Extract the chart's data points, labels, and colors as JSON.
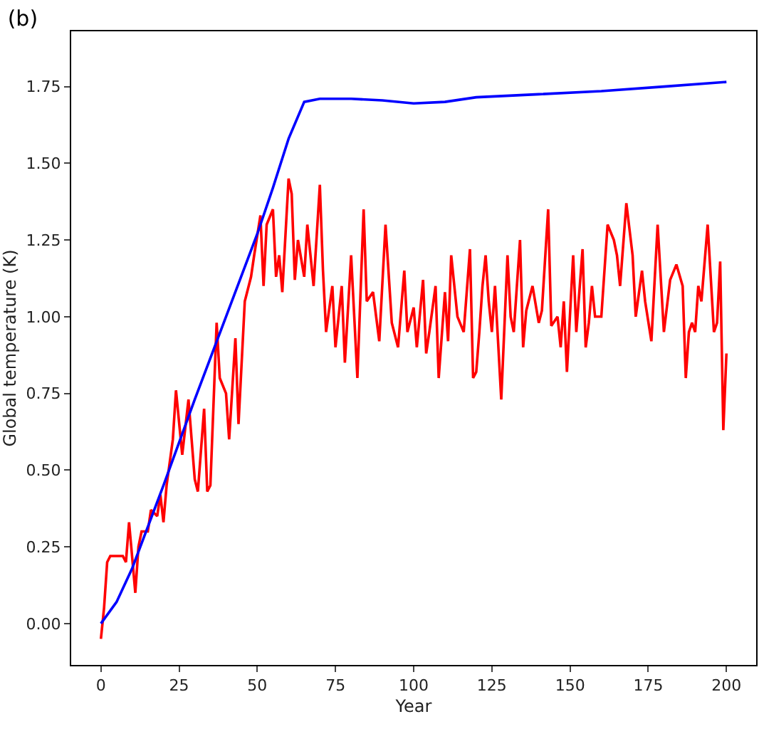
{
  "chart_data": {
    "type": "line",
    "title": "(b)",
    "xlabel": "Year",
    "ylabel": "Global temperature (K)",
    "xlim": [
      -9.5,
      209.5
    ],
    "xticks": [
      0,
      25,
      50,
      75,
      100,
      125,
      150,
      175,
      200
    ],
    "ylim": [
      -0.135,
      1.93
    ],
    "yticks": [
      {
        "value": 0,
        "label": "0.00"
      },
      {
        "value": 0.25,
        "label": "0.25"
      },
      {
        "value": 0.5,
        "label": "0.50"
      },
      {
        "value": 0.75,
        "label": "0.75"
      },
      {
        "value": 1.0,
        "label": "1.00"
      },
      {
        "value": 1.25,
        "label": "1.25"
      },
      {
        "value": 1.5,
        "label": "1.50"
      },
      {
        "value": 1.75,
        "label": "1.75"
      }
    ],
    "marker": "none",
    "line_style": "solid",
    "series": [
      {
        "color": "#ff0000",
        "x": [
          0,
          1,
          2,
          3,
          5,
          7,
          8,
          9,
          11,
          12,
          13,
          15,
          16,
          18,
          19,
          20,
          21,
          23,
          24,
          26,
          28,
          29,
          30,
          31,
          33,
          34,
          35,
          37,
          38,
          40,
          41,
          43,
          44,
          46,
          48,
          49,
          51,
          52,
          53,
          55,
          56,
          57,
          58,
          60,
          61,
          62,
          63,
          65,
          66,
          68,
          70,
          71,
          72,
          74,
          75,
          77,
          78,
          80,
          82,
          84,
          85,
          87,
          89,
          91,
          93,
          95,
          97,
          98,
          100,
          101,
          103,
          104,
          105,
          107,
          108,
          110,
          111,
          112,
          114,
          116,
          118,
          119,
          120,
          121,
          122,
          123,
          124,
          125,
          126,
          128,
          130,
          131,
          132,
          134,
          135,
          136,
          138,
          140,
          141,
          143,
          144,
          146,
          147,
          148,
          149,
          151,
          152,
          154,
          155,
          156,
          157,
          158,
          160,
          162,
          164,
          165,
          166,
          168,
          170,
          171,
          173,
          174,
          176,
          178,
          180,
          182,
          184,
          186,
          187,
          188,
          189,
          190,
          191,
          192,
          194,
          196,
          197,
          198,
          199,
          200
        ],
        "values": [
          -0.05,
          0.05,
          0.2,
          0.22,
          0.22,
          0.22,
          0.2,
          0.33,
          0.1,
          0.25,
          0.3,
          0.3,
          0.37,
          0.35,
          0.42,
          0.33,
          0.45,
          0.6,
          0.76,
          0.55,
          0.73,
          0.6,
          0.47,
          0.43,
          0.7,
          0.43,
          0.45,
          0.98,
          0.8,
          0.75,
          0.6,
          0.93,
          0.65,
          1.05,
          1.13,
          1.2,
          1.33,
          1.1,
          1.3,
          1.35,
          1.13,
          1.2,
          1.08,
          1.45,
          1.4,
          1.12,
          1.25,
          1.13,
          1.3,
          1.1,
          1.43,
          1.15,
          0.95,
          1.1,
          0.9,
          1.1,
          0.85,
          1.2,
          0.8,
          1.35,
          1.05,
          1.08,
          0.92,
          1.3,
          0.98,
          0.9,
          1.15,
          0.95,
          1.03,
          0.9,
          1.12,
          0.88,
          0.95,
          1.1,
          0.8,
          1.08,
          0.92,
          1.2,
          1.0,
          0.95,
          1.22,
          0.8,
          0.82,
          0.95,
          1.1,
          1.2,
          1.05,
          0.95,
          1.1,
          0.73,
          1.2,
          1.0,
          0.95,
          1.25,
          0.9,
          1.02,
          1.1,
          0.98,
          1.02,
          1.35,
          0.97,
          1.0,
          0.9,
          1.05,
          0.82,
          1.2,
          0.95,
          1.22,
          0.9,
          0.98,
          1.1,
          1.0,
          1.0,
          1.3,
          1.25,
          1.2,
          1.1,
          1.37,
          1.2,
          1.0,
          1.15,
          1.05,
          0.92,
          1.3,
          0.95,
          1.12,
          1.17,
          1.1,
          0.8,
          0.95,
          0.98,
          0.95,
          1.1,
          1.05,
          1.3,
          0.95,
          0.98,
          1.18,
          0.63,
          0.88
        ]
      },
      {
        "color": "#0000ff",
        "x": [
          0,
          5,
          10,
          20,
          30,
          40,
          50,
          55,
          60,
          65,
          70,
          80,
          90,
          100,
          110,
          120,
          140,
          160,
          180,
          200
        ],
        "values": [
          0,
          0.07,
          0.18,
          0.45,
          0.73,
          1.0,
          1.27,
          1.42,
          1.58,
          1.7,
          1.71,
          1.71,
          1.705,
          1.695,
          1.7,
          1.715,
          1.725,
          1.735,
          1.75,
          1.765
        ]
      }
    ]
  }
}
